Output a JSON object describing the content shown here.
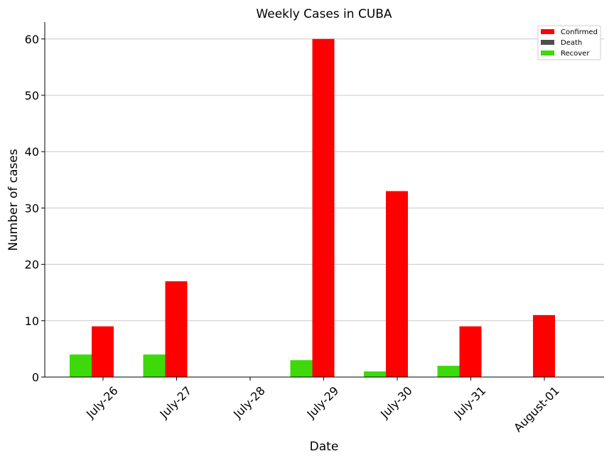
{
  "chart_data": {
    "type": "bar",
    "title": "Weekly Cases in CUBA",
    "xlabel": "Date",
    "ylabel": "Number of cases",
    "categories": [
      "July-26",
      "July-27",
      "July-28",
      "July-29",
      "July-30",
      "July-31",
      "August-01"
    ],
    "series": [
      {
        "name": "Confirmed",
        "color": "#ff0000",
        "values": [
          9,
          17,
          0,
          60,
          33,
          9,
          11
        ]
      },
      {
        "name": "Death",
        "color": "#4d4d4d",
        "values": [
          0,
          0,
          0,
          0,
          0,
          0,
          0
        ]
      },
      {
        "name": "Recover",
        "color": "#3dd90a",
        "values": [
          4,
          4,
          0,
          3,
          1,
          2,
          0
        ]
      }
    ],
    "ylim": [
      0,
      63
    ],
    "yticks": [
      0,
      10,
      20,
      30,
      40,
      50,
      60
    ],
    "grid": "horizontal",
    "legend": "top-right"
  }
}
